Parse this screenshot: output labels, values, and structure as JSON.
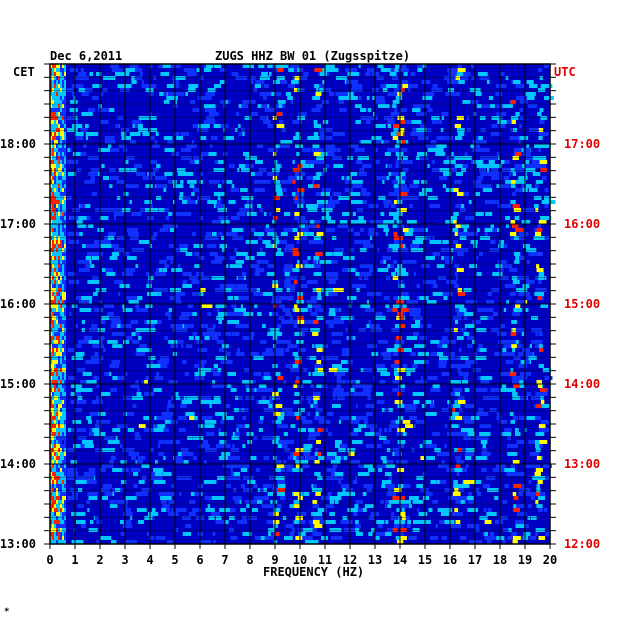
{
  "header": {
    "date": "Dec 6,2011",
    "station": "ZUGS HHZ BW 01 (Zugsspitze)"
  },
  "left_axis_label": "CET",
  "right_axis_label": "UTC",
  "footer_mark": "*",
  "chart_data": {
    "type": "heatmap",
    "title": "ZUGS HHZ BW 01 (Zugsspitze)",
    "date": "Dec 6,2011",
    "xlabel": "FREQUENCY (HZ)",
    "xlim": [
      0,
      20
    ],
    "x_ticks": [
      "0",
      "1",
      "2",
      "3",
      "4",
      "5",
      "6",
      "7",
      "8",
      "9",
      "10",
      "11",
      "12",
      "13",
      "14",
      "15",
      "16",
      "17",
      "18",
      "19",
      "20"
    ],
    "y_left_label": "CET",
    "y_left_ticks": [
      "13:00",
      "14:00",
      "15:00",
      "16:00",
      "17:00",
      "18:00"
    ],
    "y_right_label": "UTC",
    "y_right_ticks": [
      "12:00",
      "13:00",
      "14:00",
      "15:00",
      "16:00",
      "17:00"
    ],
    "time_range_cet": [
      "13:00",
      "19:00"
    ],
    "colors": {
      "background": "#0000c0",
      "low": "#1030ff",
      "mid": "#00c8ff",
      "high": "#ffff00",
      "peak": "#ff2000",
      "grid": "#000000",
      "right_axis": "#e00000"
    },
    "energy_bands_hz": [
      0.1,
      0.3,
      0.5,
      9.0,
      9.8,
      10.6,
      13.8,
      14.0,
      16.2,
      18.5,
      19.5
    ]
  }
}
